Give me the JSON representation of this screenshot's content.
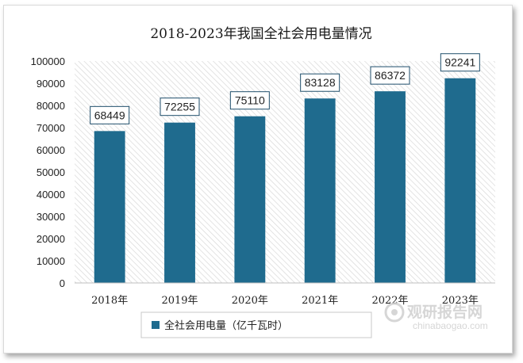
{
  "chart_data": {
    "type": "bar",
    "title": "2018-2023年我国全社会用电量情况",
    "categories": [
      "2018年",
      "2019年",
      "2020年",
      "2021年",
      "2022年",
      "2023年"
    ],
    "series": [
      {
        "name": "全社会用电量（亿千瓦时）",
        "values": [
          68449,
          72255,
          75110,
          83128,
          86372,
          92241
        ]
      }
    ],
    "ylim": [
      0,
      100000
    ],
    "yticks": [
      "0",
      "10000",
      "20000",
      "30000",
      "40000",
      "50000",
      "60000",
      "70000",
      "80000",
      "90000",
      "100000"
    ],
    "grid": false,
    "plot_background": "diagonal-hatch",
    "legend_position": "bottom",
    "data_labels": [
      "68449",
      "72255",
      "75110",
      "83128",
      "86372",
      "92241"
    ],
    "bar_color": "#1f6b8e"
  },
  "watermark": {
    "text_cn": "观研报告网",
    "text_en": "chinabaogao.com"
  }
}
